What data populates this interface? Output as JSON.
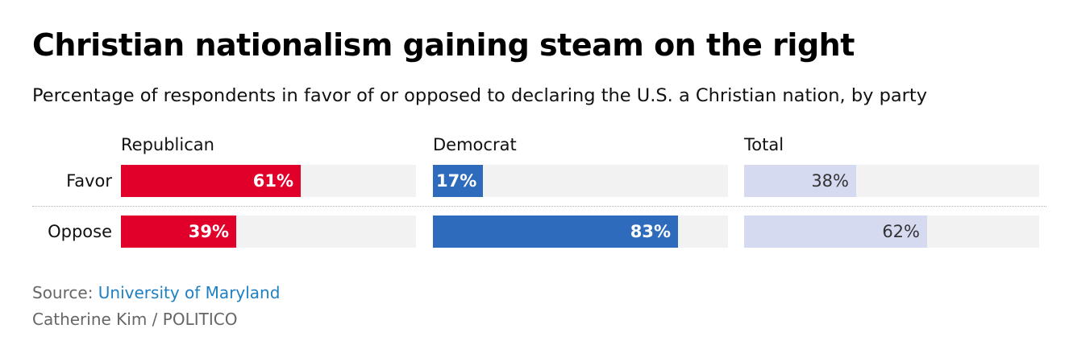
{
  "title": "Christian nationalism gaining steam on the right",
  "subtitle": "Percentage of respondents in favor of or opposed to declaring the U.S. a Christian nation, by party",
  "source_prefix": "Source: ",
  "source_link": "University of Maryland",
  "credit": "Catherine Kim / POLITICO",
  "chart_data": {
    "type": "bar",
    "orientation": "horizontal",
    "categories": [
      "Favor",
      "Oppose"
    ],
    "xlim": [
      0,
      100
    ],
    "grid": false,
    "panels": [
      {
        "name": "Republican",
        "color": "#e1002a",
        "label_color": "#ffffff",
        "values": [
          61,
          39
        ],
        "labels": [
          "61%",
          "39%"
        ]
      },
      {
        "name": "Democrat",
        "color": "#2e6bbd",
        "label_color": "#ffffff",
        "values": [
          17,
          83
        ],
        "labels": [
          "17%",
          "83%"
        ]
      },
      {
        "name": "Total",
        "color": "#d5daf1",
        "label_color": "#333333",
        "values": [
          38,
          62
        ],
        "labels": [
          "38%",
          "62%"
        ]
      }
    ],
    "track_color": "#f2f2f2"
  }
}
